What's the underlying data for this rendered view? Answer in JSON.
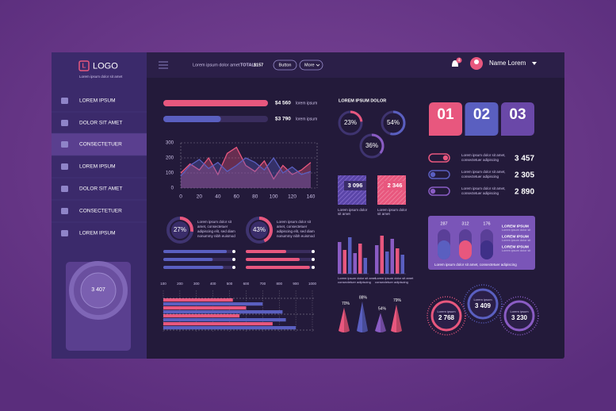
{
  "logo": {
    "mark": "L",
    "title": "LOGO",
    "subtitle": "Lorem ipsum dolor sit amet"
  },
  "header": {
    "text": "Lorem ipsum dolor amet",
    "total_label": "TOTAL:",
    "total": "$157",
    "button": "Button",
    "more": "More",
    "badge": "4",
    "user": "Name Lorem"
  },
  "menu": [
    "LOREM IPSUM",
    "DOLOR SIT AMET",
    "CONSECTETUER",
    "LOREM IPSUM",
    "DOLOR SIT AMET",
    "CONSECTETUER",
    "LOREM IPSUM"
  ],
  "active_menu": 2,
  "sidebar_widget": {
    "value": "3 407"
  },
  "colors": {
    "pink": "#e8577e",
    "blue": "#5a5fc0",
    "purple": "#8a5cc4"
  },
  "progress": [
    {
      "value": "$4 560",
      "label": "lorem ipsum",
      "fill": 100
    },
    {
      "value": "$3 790",
      "label": "lorem ipsum",
      "fill": 55
    }
  ],
  "area_chart": {
    "xlim": [
      0,
      140
    ],
    "ylim": [
      0,
      300
    ],
    "xticks": [
      0,
      20,
      40,
      60,
      80,
      100,
      120,
      140
    ],
    "yticks": [
      0,
      100,
      200,
      300
    ],
    "x": [
      0,
      10,
      20,
      30,
      40,
      50,
      60,
      70,
      80,
      90,
      100,
      110,
      120,
      130,
      140
    ],
    "series": [
      {
        "color": "#e8577e",
        "values": [
          100,
          160,
          120,
          200,
          90,
          230,
          270,
          150,
          110,
          180,
          60,
          150,
          90,
          120,
          170
        ]
      },
      {
        "color": "#5a5fc0",
        "values": [
          80,
          150,
          190,
          130,
          170,
          110,
          150,
          200,
          170,
          120,
          200,
          100,
          140,
          90,
          110
        ]
      }
    ]
  },
  "donuts": [
    {
      "value": 27,
      "label": "27%",
      "text": [
        "Lorem ipsum dolor sit",
        "amet, consectetuer",
        "adipiscing elit, sed diam",
        "nonummy nibh euismod"
      ]
    },
    {
      "value": 43,
      "label": "43%",
      "text": [
        "Lorem ipsum dolor sit",
        "amet, consectetuer",
        "adipiscing elit, sed diam",
        "nonummy nibh euismod"
      ]
    }
  ],
  "sliders_left": [
    90,
    70,
    85
  ],
  "sliders_right": [
    60,
    80,
    95
  ],
  "hbar": {
    "xlim": [
      100,
      1000
    ],
    "xticks": [
      100,
      200,
      300,
      400,
      500,
      600,
      700,
      800,
      900,
      1000
    ],
    "values": [
      520,
      700,
      600,
      820,
      560,
      840,
      760,
      900
    ]
  },
  "circles_title": "LOREM IPSUM DOLOR",
  "circles": [
    {
      "value": 23,
      "label": "23%"
    },
    {
      "value": 54,
      "label": "54%"
    },
    {
      "value": 36,
      "label": "36%"
    }
  ],
  "squares": [
    {
      "value": "3 096",
      "text": [
        "Lorem ipsum dolor",
        "sit amet"
      ]
    },
    {
      "value": "2 346",
      "text": [
        "Lorem ipsum dolor",
        "sit amet"
      ]
    }
  ],
  "bar_groups": [
    {
      "values": [
        40,
        30,
        46,
        26,
        38,
        20
      ],
      "text": [
        "Lorem ipsum dolor sit amet",
        "consectetuer adipiscing"
      ]
    },
    {
      "values": [
        36,
        48,
        28,
        44,
        32,
        24
      ],
      "text": [
        "Lorem ipsum dolor sit amet",
        "consectetuer adipiscing"
      ]
    }
  ],
  "cones": [
    {
      "value": 70,
      "label": "70%"
    },
    {
      "value": 88,
      "label": "88%"
    },
    {
      "value": 54,
      "label": "54%"
    },
    {
      "value": 79,
      "label": "79%"
    }
  ],
  "tabs": [
    "01",
    "02",
    "03"
  ],
  "toggles": [
    {
      "value": "3 457",
      "text": [
        "Lorem ipsum dolor sit amet,",
        "consectetuer adipiscing"
      ]
    },
    {
      "value": "2 305",
      "text": [
        "Lorem ipsum dolor sit amet,",
        "consectetuer adipiscing"
      ]
    },
    {
      "value": "2 890",
      "text": [
        "Lorem ipsum dolor sit amet,",
        "consectetuer adipiscing"
      ]
    }
  ],
  "pills": {
    "values": [
      "287",
      "312",
      "176"
    ],
    "labels": [
      "LOREM IPSUM",
      "LOREM IPSUM",
      "LOREM IPSUM"
    ],
    "label_text": "Lorem ipsum dolor sit",
    "text": "Lorem ipsum dolor sit amet, consectetuer adipiscing"
  },
  "rings": [
    {
      "label": "Lorem ipsum",
      "value": "2 768"
    },
    {
      "label": "Lorem ipsum",
      "value": "3 409"
    },
    {
      "label": "Lorem ipsum",
      "value": "3 230"
    }
  ]
}
